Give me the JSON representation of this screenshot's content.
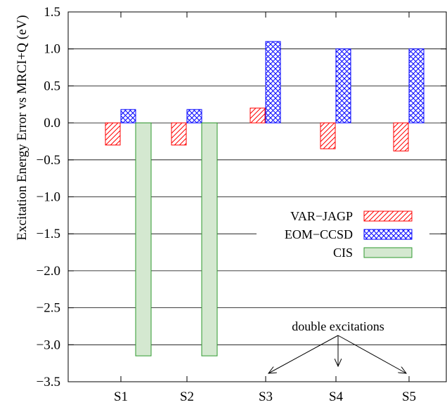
{
  "chart_data": {
    "type": "bar",
    "categories": [
      "S1",
      "S2",
      "S3",
      "S4",
      "S5"
    ],
    "series": [
      {
        "name": "VAR−JAGP",
        "values": [
          -0.3,
          -0.3,
          0.2,
          -0.35,
          -0.38
        ],
        "color": "#ff0000",
        "pattern": "diagonal-hatch"
      },
      {
        "name": "EOM−CCSD",
        "values": [
          0.18,
          0.18,
          1.1,
          1.0,
          1.0
        ],
        "color": "#0000ff",
        "pattern": "crosshatch"
      },
      {
        "name": "CIS",
        "values": [
          -3.15,
          -3.15,
          null,
          null,
          null
        ],
        "color": "#2e9a2e",
        "fill": "#d4e8d0",
        "pattern": "solid"
      }
    ],
    "ylabel": "Excitation Energy Error vs MRCI+Q (eV)",
    "xlabel": "",
    "ylim": [
      -3.5,
      1.5
    ],
    "yticks": [
      "1.5",
      "1.0",
      "0.5",
      "0.0",
      "−0.5",
      "−1.0",
      "−1.5",
      "−2.0",
      "−2.5",
      "−3.0",
      "−3.5"
    ],
    "ytick_values": [
      1.5,
      1.0,
      0.5,
      0.0,
      -0.5,
      -1.0,
      -1.5,
      -2.0,
      -2.5,
      -3.0,
      -3.5
    ],
    "grid": "horizontal",
    "legend": "center-right",
    "annotation": {
      "text": "double excitations",
      "target_categories": [
        "S3",
        "S4",
        "S5"
      ]
    }
  }
}
